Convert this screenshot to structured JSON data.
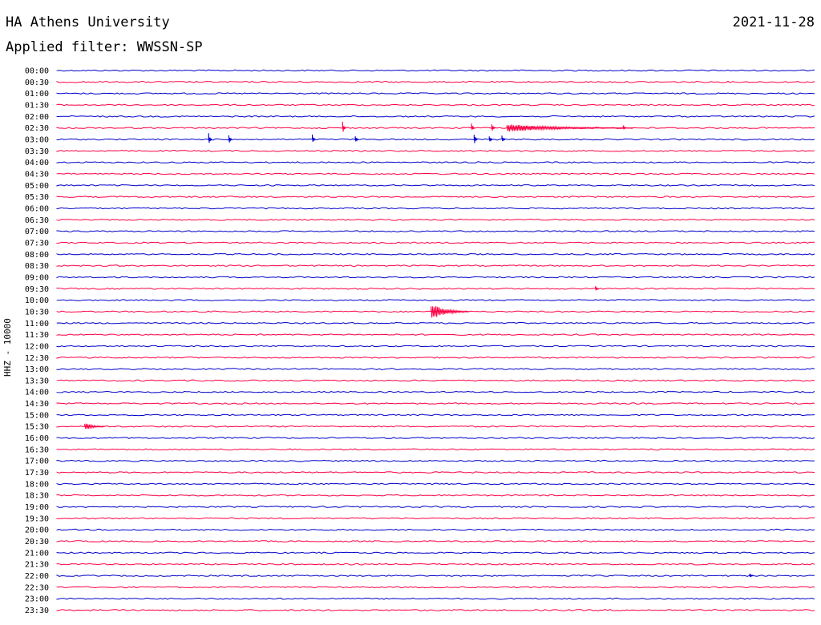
{
  "header": {
    "station": "HA Athens University",
    "date": "2021-11-28",
    "filter_label": "Applied filter: WWSSN-SP"
  },
  "chart_data": {
    "type": "line",
    "title": "HA Athens University",
    "ylabel": "HHZ - 10000",
    "trace_colors": [
      "#0000cc",
      "#ff0044"
    ],
    "rows": [
      "00:00",
      "00:30",
      "01:00",
      "01:30",
      "02:00",
      "02:30",
      "03:00",
      "03:30",
      "04:00",
      "04:30",
      "05:00",
      "05:30",
      "06:00",
      "06:30",
      "07:00",
      "07:30",
      "08:00",
      "08:30",
      "09:00",
      "09:30",
      "10:00",
      "10:30",
      "11:00",
      "11:30",
      "12:00",
      "12:30",
      "13:00",
      "13:30",
      "14:00",
      "14:30",
      "15:00",
      "15:30",
      "16:00",
      "16:30",
      "17:00",
      "17:30",
      "18:00",
      "18:30",
      "19:00",
      "19:30",
      "20:00",
      "20:30",
      "21:00",
      "21:30",
      "22:00",
      "22:30",
      "23:00",
      "23:30"
    ],
    "x_range_minutes": [
      0,
      30
    ],
    "events": [
      {
        "row": "02:30",
        "minute": 11.3,
        "amplitude": 8
      },
      {
        "row": "02:30",
        "minute": 16.4,
        "amplitude": 6
      },
      {
        "row": "02:30",
        "minute": 17.2,
        "amplitude": 7
      },
      {
        "row": "02:30",
        "minute": 17.8,
        "amplitude": 5,
        "duration": 5
      },
      {
        "row": "02:30",
        "minute": 22.4,
        "amplitude": 4
      },
      {
        "row": "03:00",
        "minute": 6.0,
        "amplitude": 8
      },
      {
        "row": "03:00",
        "minute": 6.8,
        "amplitude": 7
      },
      {
        "row": "03:00",
        "minute": 10.1,
        "amplitude": 7
      },
      {
        "row": "03:00",
        "minute": 11.8,
        "amplitude": 6
      },
      {
        "row": "03:00",
        "minute": 16.5,
        "amplitude": 9
      },
      {
        "row": "03:00",
        "minute": 17.1,
        "amplitude": 6
      },
      {
        "row": "03:00",
        "minute": 17.6,
        "amplitude": 5
      },
      {
        "row": "09:30",
        "minute": 21.3,
        "amplitude": 4
      },
      {
        "row": "10:30",
        "minute": 14.8,
        "amplitude": 10,
        "duration": 1.5
      },
      {
        "row": "15:30",
        "minute": 1.1,
        "amplitude": 5,
        "duration": 0.8
      },
      {
        "row": "22:00",
        "minute": 27.4,
        "amplitude": 3
      }
    ],
    "grid": false
  }
}
